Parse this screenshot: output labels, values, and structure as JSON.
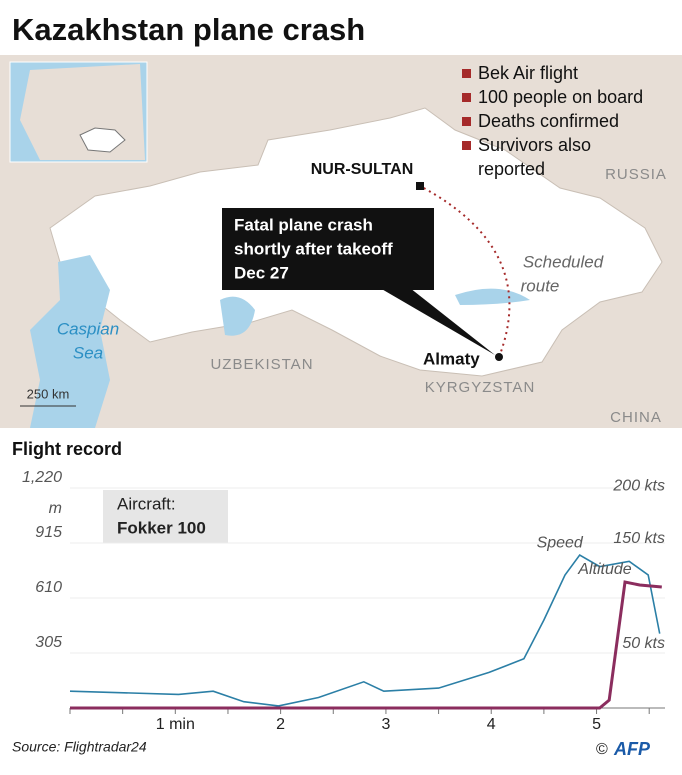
{
  "header": {
    "title": "Kazakhstan plane crash"
  },
  "map": {
    "facts": [
      "Bek Air flight",
      "100 people on board",
      "Deaths confirmed",
      "Survivors also",
      "reported"
    ],
    "capital": "NUR-SULTAN",
    "crash_site": "Almaty",
    "countries": [
      "RUSSIA",
      "UZBEKISTAN",
      "KYRGYZSTAN",
      "CHINA"
    ],
    "sea": [
      "Caspian",
      "Sea"
    ],
    "route": [
      "Scheduled",
      "route"
    ],
    "callout": [
      "Fatal plane crash",
      "shortly after takeoff",
      "Dec 27"
    ],
    "scale": "250 km"
  },
  "chart_data": {
    "type": "line",
    "title": "Flight record",
    "y_label": "m",
    "aircraft": [
      "Aircraft:",
      "Fokker 100"
    ],
    "xlim": [
      0,
      5.65
    ],
    "xticks": [
      {
        "value": 1,
        "label": "1 min"
      },
      2,
      3,
      4,
      5
    ],
    "xminorticks": [
      0,
      0.5,
      1,
      1.5,
      2,
      2.5,
      3,
      3.5,
      4,
      4.5,
      5,
      5.5
    ],
    "ylim": [
      0,
      1220
    ],
    "yticks": [
      305,
      610,
      915,
      {
        "value": 1220,
        "label": "1,220"
      }
    ],
    "y2lim": [
      0,
      210
    ],
    "y2ticks": [
      {
        "value": 50,
        "label": "50 kts"
      },
      {
        "value": 150,
        "label": "150 kts"
      },
      {
        "value": 200,
        "label": "200 kts"
      }
    ],
    "grid": true,
    "series": [
      {
        "name": "Speed",
        "color": "#2b7fa6",
        "axis": "y2",
        "x": [
          0,
          1.03,
          1.36,
          1.65,
          1.98,
          2.36,
          2.79,
          2.98,
          3.5,
          3.98,
          4.31,
          4.5,
          4.7,
          4.84,
          5.03,
          5.31,
          5.49,
          5.6
        ],
        "values": [
          16,
          13,
          16,
          6,
          2,
          10,
          25,
          16,
          19,
          34,
          47,
          84,
          127,
          146,
          135,
          140,
          127,
          71
        ]
      },
      {
        "name": "Altitude",
        "color": "#8b2d5e",
        "x": [
          0,
          5.03,
          5.12,
          5.27,
          5.41,
          5.62
        ],
        "values": [
          0,
          0,
          44,
          699,
          682,
          671
        ]
      }
    ]
  },
  "footer": {
    "source": "Source: Flightradar24",
    "credit": "AFP"
  }
}
